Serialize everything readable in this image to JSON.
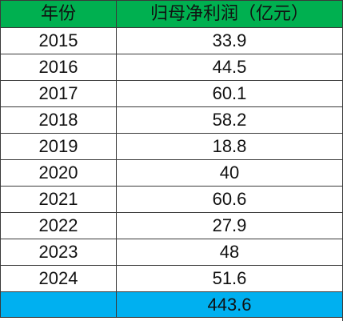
{
  "table": {
    "headers": [
      "年份",
      "归母净利润（亿元）"
    ],
    "rows": [
      {
        "year": "2015",
        "value": "33.9"
      },
      {
        "year": "2016",
        "value": "44.5"
      },
      {
        "year": "2017",
        "value": "60.1"
      },
      {
        "year": "2018",
        "value": "58.2"
      },
      {
        "year": "2019",
        "value": "18.8"
      },
      {
        "year": "2020",
        "value": "40"
      },
      {
        "year": "2021",
        "value": "60.6"
      },
      {
        "year": "2022",
        "value": "27.9"
      },
      {
        "year": "2023",
        "value": "48"
      },
      {
        "year": "2024",
        "value": "51.6"
      }
    ],
    "total": {
      "year": "",
      "value": "443.6"
    }
  },
  "colors": {
    "header_bg": "#00b050",
    "total_bg": "#00b0f0",
    "border": "#3a3a3a"
  }
}
